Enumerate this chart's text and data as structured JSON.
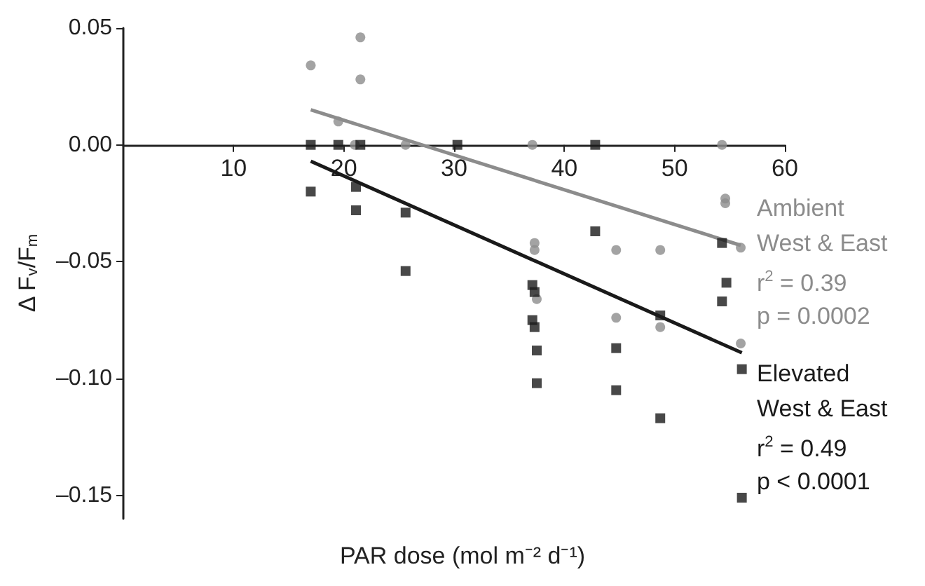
{
  "chart_data": {
    "type": "scatter",
    "xlabel": "PAR dose (mol m⁻² d⁻¹)",
    "ylabel": "Δ F$_{v}$/F$_{m}$",
    "xlim": [
      0,
      60
    ],
    "xticks": [
      10,
      20,
      30,
      40,
      50,
      60
    ],
    "ylim": [
      -0.16,
      0.05
    ],
    "yticks": [
      {
        "value": 0.05,
        "label": "0.05"
      },
      {
        "value": 0,
        "label": "0.00"
      },
      {
        "value": -0.05,
        "label": "–0.05"
      },
      {
        "value": -0.1,
        "label": "–0.10"
      },
      {
        "value": -0.15,
        "label": "–0.15"
      }
    ],
    "grid": false,
    "legend": false,
    "series": [
      {
        "name": "Ambient\nWest & East",
        "color": "#8c8c8c",
        "marker": "circle",
        "x": [
          17,
          21.5,
          21.5,
          19.5,
          21,
          25.6,
          37.1,
          54.3,
          54.6,
          54.6,
          56,
          37.3,
          37.3,
          44.7,
          48.7,
          37.5,
          44.7,
          48.7,
          56
        ],
        "values": [
          0.034,
          0.046,
          0.028,
          0.01,
          0,
          0,
          0,
          0,
          -0.023,
          -0.025,
          -0.044,
          -0.042,
          -0.045,
          -0.045,
          -0.045,
          -0.066,
          -0.074,
          -0.078,
          -0.085
        ]
      },
      {
        "name": "Elevated\nWest & East",
        "color": "#1a1a1a",
        "marker": "square",
        "x": [
          17,
          19.5,
          21.5,
          30.3,
          17,
          21.1,
          21.1,
          25.6,
          25.6,
          42.8,
          42.8,
          54.3,
          54.7,
          54.3,
          56.1,
          37.1,
          37.3,
          37.1,
          37.3,
          37.5,
          37.5,
          44.7,
          44.7,
          48.7,
          48.7,
          56.1
        ],
        "values": [
          0,
          0,
          0,
          0,
          -0.02,
          -0.018,
          -0.028,
          -0.029,
          -0.054,
          0,
          -0.037,
          -0.042,
          -0.059,
          -0.067,
          -0.096,
          -0.06,
          -0.063,
          -0.075,
          -0.078,
          -0.088,
          -0.102,
          -0.087,
          -0.105,
          -0.073,
          -0.117,
          -0.151
        ]
      },
      {
        "type": "line",
        "color": "#8c8c8c",
        "marker": "none",
        "x": [
          17,
          56
        ],
        "values": [
          0.015,
          -0.043
        ]
      },
      {
        "type": "line",
        "color": "#1a1a1a",
        "marker": "none",
        "x": [
          17,
          56.1
        ],
        "values": [
          -0.007,
          -0.089
        ]
      }
    ],
    "annotations": [
      "r$^{2}$ = 0.39",
      "p = 0.0002",
      "r$^{2}$ = 0.49",
      "p < 0.0001"
    ]
  }
}
